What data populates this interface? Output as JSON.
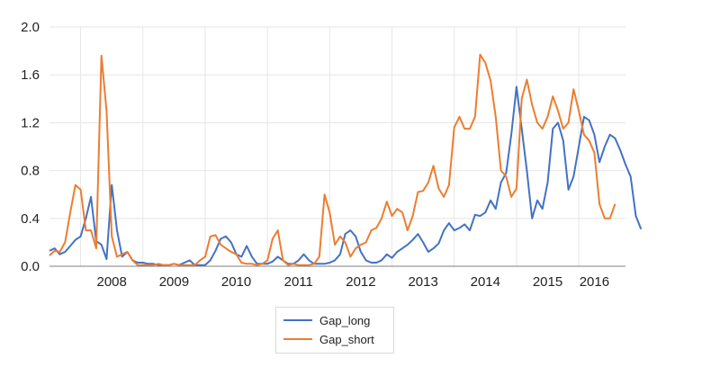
{
  "chart_data": {
    "type": "line",
    "x_start": 2007.5,
    "x_step": 0.08333,
    "xlim": [
      2007.5,
      2016.75
    ],
    "ylim": [
      0,
      2.0
    ],
    "yticks": [
      "0.0",
      "0.4",
      "0.8",
      "1.2",
      "1.6",
      "2.0"
    ],
    "xticks": [
      "2008",
      "2009",
      "2010",
      "2011",
      "2012",
      "2013",
      "2014",
      "2015",
      "2016"
    ],
    "grid": true,
    "legend": "bottom-center",
    "series": [
      {
        "name": "Gap_long",
        "color": "#4472c4",
        "values": [
          0.13,
          0.15,
          0.1,
          0.12,
          0.17,
          0.22,
          0.25,
          0.4,
          0.58,
          0.21,
          0.18,
          0.06,
          0.68,
          0.3,
          0.08,
          0.12,
          0.05,
          0.03,
          0.03,
          0.02,
          0.02,
          0.01,
          0.01,
          0.01,
          0.02,
          0.01,
          0.03,
          0.05,
          0.01,
          0.01,
          0.01,
          0.05,
          0.13,
          0.23,
          0.25,
          0.2,
          0.1,
          0.08,
          0.17,
          0.08,
          0.02,
          0.02,
          0.02,
          0.04,
          0.08,
          0.05,
          0.02,
          0.02,
          0.05,
          0.1,
          0.05,
          0.02,
          0.02,
          0.02,
          0.03,
          0.05,
          0.1,
          0.27,
          0.3,
          0.25,
          0.12,
          0.05,
          0.03,
          0.03,
          0.05,
          0.1,
          0.07,
          0.12,
          0.15,
          0.18,
          0.22,
          0.27,
          0.2,
          0.12,
          0.15,
          0.19,
          0.3,
          0.36,
          0.3,
          0.32,
          0.35,
          0.3,
          0.43,
          0.42,
          0.45,
          0.55,
          0.48,
          0.7,
          0.78,
          1.1,
          1.5,
          1.15,
          0.8,
          0.4,
          0.55,
          0.48,
          0.7,
          1.15,
          1.2,
          1.05,
          0.64,
          0.75,
          1.0,
          1.25,
          1.22,
          1.1,
          0.87,
          1.0,
          1.1,
          1.07,
          0.97,
          0.85,
          0.75,
          0.42,
          0.31
        ]
      },
      {
        "name": "Gap_short",
        "color": "#ed7d31",
        "values": [
          0.09,
          0.13,
          0.12,
          0.2,
          0.45,
          0.68,
          0.64,
          0.3,
          0.3,
          0.15,
          1.76,
          1.3,
          0.25,
          0.08,
          0.1,
          0.12,
          0.05,
          0.01,
          0.01,
          0.01,
          0.01,
          0.02,
          0.01,
          0.01,
          0.02,
          0.01,
          0.01,
          0.01,
          0.01,
          0.05,
          0.08,
          0.25,
          0.26,
          0.18,
          0.15,
          0.12,
          0.1,
          0.03,
          0.02,
          0.02,
          0.01,
          0.02,
          0.05,
          0.23,
          0.3,
          0.05,
          0.01,
          0.02,
          0.01,
          0.01,
          0.01,
          0.02,
          0.08,
          0.6,
          0.45,
          0.18,
          0.25,
          0.2,
          0.08,
          0.15,
          0.18,
          0.2,
          0.3,
          0.32,
          0.4,
          0.54,
          0.42,
          0.48,
          0.45,
          0.3,
          0.42,
          0.62,
          0.63,
          0.7,
          0.84,
          0.65,
          0.58,
          0.68,
          1.16,
          1.25,
          1.15,
          1.15,
          1.25,
          1.77,
          1.7,
          1.55,
          1.25,
          0.8,
          0.75,
          0.58,
          0.65,
          1.4,
          1.56,
          1.35,
          1.2,
          1.15,
          1.25,
          1.42,
          1.3,
          1.15,
          1.2,
          1.48,
          1.3,
          1.1,
          1.05,
          0.95,
          0.52,
          0.4,
          0.4,
          0.52
        ]
      }
    ]
  }
}
